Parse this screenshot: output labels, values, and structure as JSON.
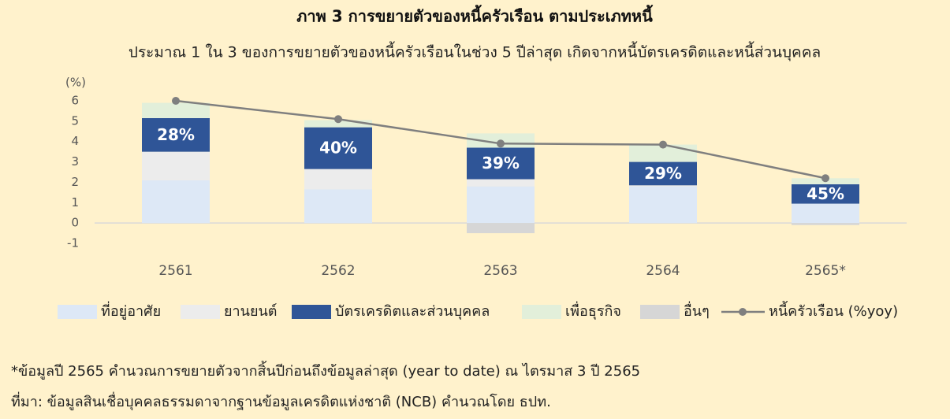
{
  "chart_data": {
    "type": "stacked-bar-line",
    "title": "ภาพ 3 การขยายตัวของหนี้ครัวเรือน ตามประเภทหนี้",
    "subtitle": "ประมาณ 1 ใน 3 ของการขยายตัวของหนี้ครัวเรือนในช่วง 5 ปีล่าสุด เกิดจากหนี้บัตรเครดิตและหนี้ส่วนบุคคล",
    "y_label": "(%)",
    "categories": [
      "2561",
      "2562",
      "2563",
      "2564",
      "2565*"
    ],
    "series": [
      {
        "name": "ที่อยู่อาศัย",
        "color": "#dde8f6",
        "values": [
          2.1,
          1.65,
          1.8,
          1.8,
          0.95
        ]
      },
      {
        "name": "ยานยนต์",
        "color": "#ececec",
        "values": [
          1.4,
          1.0,
          0.35,
          0.05,
          0
        ]
      },
      {
        "name": "บัตรเครดิตและส่วนบุคคล",
        "color": "#2f5597",
        "values": [
          1.65,
          2.05,
          1.55,
          1.15,
          0.95
        ],
        "share_labels": [
          "28%",
          "40%",
          "39%",
          "29%",
          "45%"
        ]
      },
      {
        "name": "เพื่อธุรกิจ",
        "color": "#e2efda",
        "values": [
          0.75,
          0.35,
          0.7,
          0.85,
          0.3
        ]
      },
      {
        "name": "อื่นๆ",
        "color": "#d6d6d6",
        "values": [
          0,
          0,
          -0.5,
          0,
          -0.1
        ]
      },
      {
        "name": "หนี้ครัวเรือน (%yoy)",
        "color": "#7f7f7f",
        "type": "line",
        "values": [
          6.0,
          5.1,
          3.9,
          3.85,
          2.2
        ]
      }
    ],
    "ylim": [
      -1,
      6
    ],
    "yticks": [
      -1,
      0,
      1,
      2,
      3,
      4,
      5,
      6
    ],
    "legend": "bottom",
    "notes": [
      "*ข้อมูลปี 2565 คำนวณการขยายตัวจากสิ้นปีก่อนถึงข้อมูลล่าสุด (year to date) ณ ไตรมาส 3 ปี 2565",
      "ที่มา: ข้อมูลสินเชื่อบุคคลธรรมดาจากฐานข้อมูลเครดิตแห่งชาติ (NCB) คำนวณโดย ธปท."
    ]
  }
}
